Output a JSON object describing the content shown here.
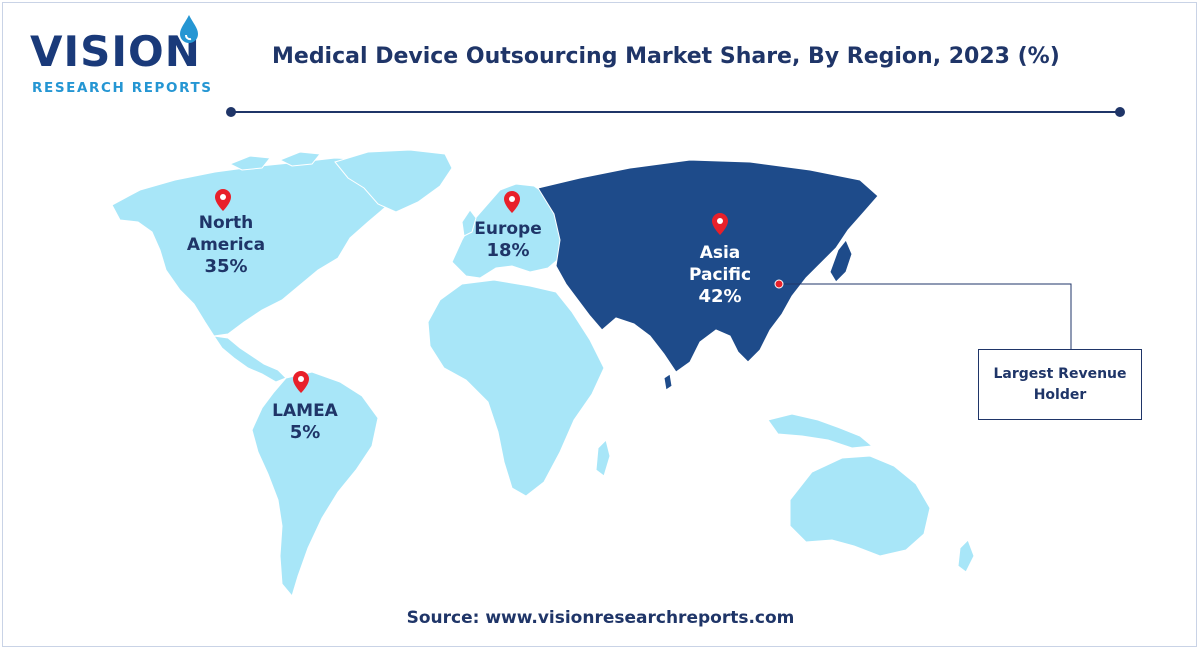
{
  "brand": {
    "name": "VISION",
    "tagline": "RESEARCH REPORTS",
    "primary_color": "#1a3a7a",
    "accent_color": "#2596d3"
  },
  "title": "Medical Device Outsourcing Market Share, By Region, 2023 (%)",
  "chart_data": {
    "type": "choropleth",
    "regions": [
      {
        "name": "North America",
        "value": 35,
        "label": "35%",
        "shade": "light"
      },
      {
        "name": "Europe",
        "value": 18,
        "label": "18%",
        "shade": "light"
      },
      {
        "name": "Asia Pacific",
        "value": 42,
        "label": "42%",
        "shade": "dark"
      },
      {
        "name": "LAMEA",
        "value": 5,
        "label": "5%",
        "shade": "light"
      }
    ],
    "colors": {
      "light": "#a8e6f8",
      "dark": "#1e4b8a",
      "pin": "#e8202a"
    },
    "annotation": "Largest Revenue Holder"
  },
  "labels": {
    "north_america": {
      "line1": "North",
      "line2": "America",
      "share": "35%"
    },
    "europe": {
      "line1": "Europe",
      "share": "18%"
    },
    "asia_pacific": {
      "line1": "Asia",
      "line2": "Pacific",
      "share": "42%"
    },
    "lamea": {
      "line1": "LAMEA",
      "share": "5%"
    }
  },
  "callout": "Largest Revenue Holder",
  "source": "Source: www.visionresearchreports.com",
  "icons": {
    "pin": "map-pin-icon",
    "drop": "drop-icon"
  }
}
